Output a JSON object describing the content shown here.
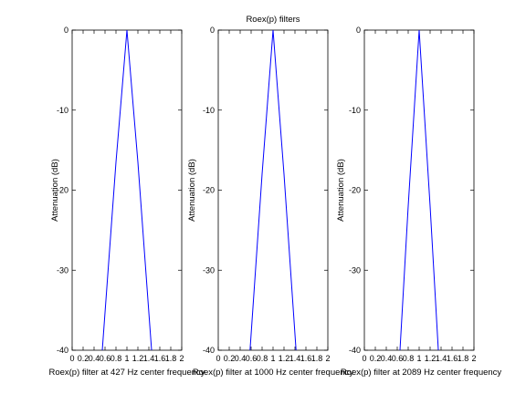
{
  "figure": {
    "title": "Roex(p) filters"
  },
  "chart_data": [
    {
      "type": "line",
      "title": "",
      "xlabel": "Roex(p) filter at 427 Hz center frequency",
      "ylabel": "Attenuation (dB)",
      "xlim": [
        0,
        2
      ],
      "ylim": [
        -40,
        0
      ],
      "xticks": [
        "0",
        "0.2",
        "0.4",
        "0.6",
        "0.8",
        "1",
        "1.2",
        "1.4",
        "1.6",
        "1.8",
        "2"
      ],
      "yticks": [
        "-40",
        "-30",
        "-20",
        "-10",
        "0"
      ],
      "grid": false,
      "series": [
        {
          "color": "#0000ff",
          "x": [
            0.55,
            0.8,
            0.9,
            1.0,
            1.1,
            1.2,
            1.45
          ],
          "y": [
            -40,
            -16.5,
            -8.3,
            0,
            -8.3,
            -16.5,
            -40
          ]
        }
      ]
    },
    {
      "type": "line",
      "title": "Roex(p) filters",
      "xlabel": "Roex(p) filter at 1000 Hz center frequency",
      "ylabel": "Attenuation (dB)",
      "xlim": [
        0,
        2
      ],
      "ylim": [
        -40,
        0
      ],
      "xticks": [
        "0",
        "0.2",
        "0.4",
        "0.6",
        "0.8",
        "1",
        "1.2",
        "1.4",
        "1.6",
        "1.8",
        "2"
      ],
      "yticks": [
        "-40",
        "-30",
        "-20",
        "-10",
        "0"
      ],
      "grid": false,
      "series": [
        {
          "color": "#0000ff",
          "x": [
            0.58,
            0.8,
            0.9,
            1.0,
            1.1,
            1.2,
            1.42
          ],
          "y": [
            -40,
            -18.0,
            -9.0,
            0,
            -9.0,
            -18.0,
            -40
          ]
        }
      ]
    },
    {
      "type": "line",
      "title": "",
      "xlabel": "Roex(p) filter at 2089 Hz center frequency",
      "ylabel": "Attenuation (dB)",
      "xlim": [
        0,
        2
      ],
      "ylim": [
        -40,
        0
      ],
      "xticks": [
        "0",
        "0.2",
        "0.4",
        "0.6",
        "0.8",
        "1",
        "1.2",
        "1.4",
        "1.6",
        "1.8",
        "2"
      ],
      "yticks": [
        "-40",
        "-30",
        "-20",
        "-10",
        "0"
      ],
      "grid": false,
      "series": [
        {
          "color": "#0000ff",
          "x": [
            0.65,
            0.8,
            0.9,
            1.0,
            1.1,
            1.2,
            1.35
          ],
          "y": [
            -40,
            -22.0,
            -11.0,
            0,
            -11.0,
            -22.0,
            -40
          ]
        }
      ]
    }
  ]
}
